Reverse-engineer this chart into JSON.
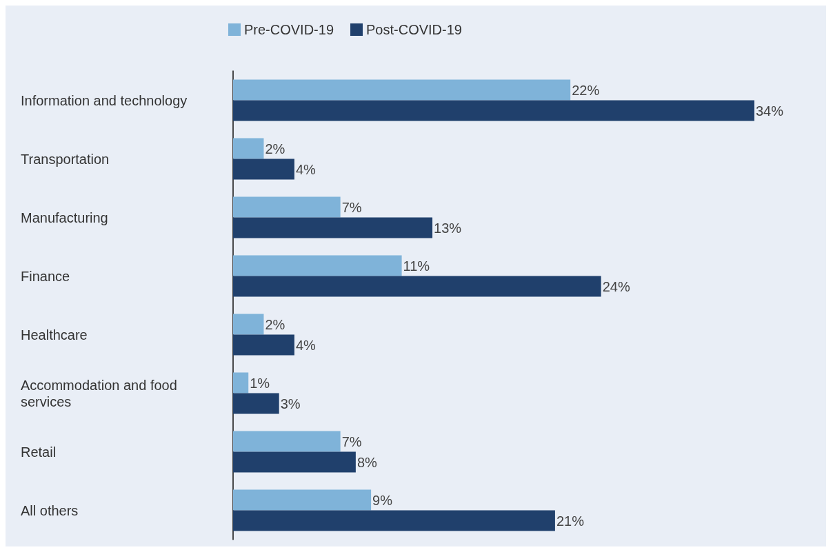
{
  "chart_data": {
    "type": "bar",
    "orientation": "horizontal",
    "categories": [
      "Information and technology",
      "Transportation",
      "Manufacturing",
      "Finance",
      "Healthcare",
      "Accommodation and food services",
      "Retail",
      "All others"
    ],
    "series": [
      {
        "name": "Pre-COVID-19",
        "color": "#7fb3d9",
        "values": [
          22,
          2,
          7,
          11,
          2,
          1,
          7,
          9
        ],
        "value_labels": [
          "22%",
          "2%",
          "7%",
          "11%",
          "2%",
          "1%",
          "7%",
          "9%"
        ]
      },
      {
        "name": "Post-COVID-19",
        "color": "#20406c",
        "values": [
          34,
          4,
          13,
          24,
          4,
          3,
          8,
          21
        ],
        "value_labels": [
          "34%",
          "4%",
          "13%",
          "24%",
          "4%",
          "3%",
          "8%",
          "21%"
        ]
      }
    ],
    "legend": "top"
  }
}
